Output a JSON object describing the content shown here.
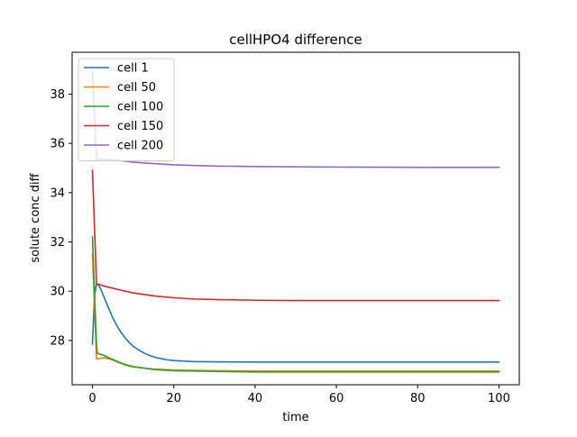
{
  "chart_data": {
    "type": "line",
    "title": "cellHPO4 difference",
    "xlabel": "time",
    "ylabel": "solute conc diff",
    "xlim": [
      -5,
      105
    ],
    "ylim": [
      26.2,
      39.7
    ],
    "xticks": [
      0,
      20,
      40,
      60,
      80,
      100
    ],
    "yticks": [
      28,
      30,
      32,
      34,
      36,
      38
    ],
    "grid": false,
    "legend_position": "top-left",
    "series": [
      {
        "name": "cell 1",
        "color": "#1f77b4",
        "x": [
          0,
          0.5,
          1,
          1.5,
          2,
          3,
          4,
          5,
          6,
          7,
          8,
          9,
          10,
          11,
          12,
          13,
          14,
          15,
          16,
          18,
          20,
          25,
          30,
          40,
          50,
          60,
          70,
          80,
          90,
          100
        ],
        "y": [
          27.85,
          29.8,
          30.3,
          30.25,
          30.1,
          29.7,
          29.3,
          28.92,
          28.6,
          28.33,
          28.11,
          27.92,
          27.77,
          27.65,
          27.55,
          27.46,
          27.39,
          27.34,
          27.29,
          27.22,
          27.18,
          27.14,
          27.13,
          27.12,
          27.12,
          27.12,
          27.12,
          27.12,
          27.12,
          27.12
        ]
      },
      {
        "name": "cell 50",
        "color": "#ff7f0e",
        "x": [
          0,
          1,
          3,
          5,
          8,
          10,
          15,
          20,
          30,
          40,
          60,
          80,
          100
        ],
        "y": [
          31.5,
          27.25,
          27.3,
          27.2,
          27.0,
          26.92,
          26.84,
          26.8,
          26.77,
          26.76,
          26.76,
          26.76,
          26.76
        ]
      },
      {
        "name": "cell 100",
        "color": "#2ca02c",
        "x": [
          0,
          1,
          1.2,
          3,
          5,
          8,
          10,
          15,
          20,
          30,
          40,
          60,
          80,
          100
        ],
        "y": [
          32.2,
          27.8,
          27.48,
          27.38,
          27.22,
          27.02,
          26.94,
          26.82,
          26.77,
          26.74,
          26.72,
          26.72,
          26.72,
          26.72
        ]
      },
      {
        "name": "cell 150",
        "color": "#d62728",
        "x": [
          0,
          1,
          3,
          5,
          8,
          10,
          15,
          20,
          25,
          30,
          40,
          50,
          60,
          80,
          100
        ],
        "y": [
          34.9,
          30.3,
          30.2,
          30.12,
          30.0,
          29.93,
          29.81,
          29.73,
          29.68,
          29.66,
          29.63,
          29.62,
          29.62,
          29.62,
          29.62
        ]
      },
      {
        "name": "cell 200",
        "color": "#9467bd",
        "x": [
          0,
          1,
          3,
          5,
          8,
          10,
          15,
          20,
          30,
          40,
          60,
          80,
          100
        ],
        "y": [
          38.9,
          35.35,
          35.36,
          35.33,
          35.28,
          35.24,
          35.18,
          35.13,
          35.08,
          35.06,
          35.04,
          35.03,
          35.03
        ]
      }
    ]
  }
}
